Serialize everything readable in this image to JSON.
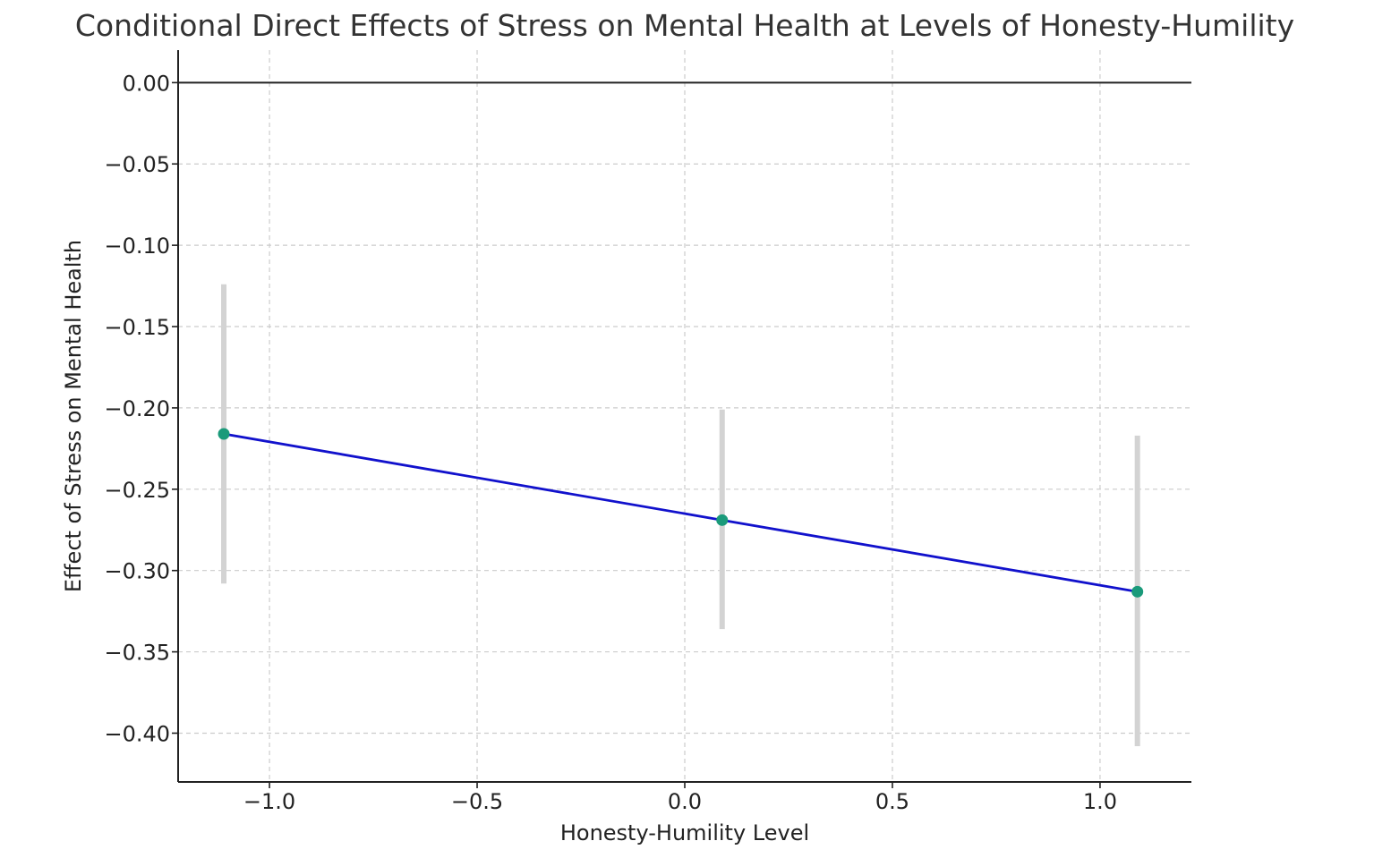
{
  "chart_data": {
    "type": "line",
    "title": "Conditional Direct Effects of Stress on Mental Health at Levels of Honesty-Humility",
    "xlabel": "Honesty-Humility Level",
    "ylabel": "Effect of Stress on Mental Health",
    "xlim": [
      -1.22,
      1.22
    ],
    "ylim": [
      -0.43,
      0.02
    ],
    "xticks": [
      -1.0,
      -0.5,
      0.0,
      0.5,
      1.0
    ],
    "xtick_labels": [
      "−1.0",
      "−0.5",
      "0.0",
      "0.5",
      "1.0"
    ],
    "yticks": [
      0.0,
      -0.05,
      -0.1,
      -0.15,
      -0.2,
      -0.25,
      -0.3,
      -0.35,
      -0.4
    ],
    "ytick_labels": [
      "0.00",
      "−0.05",
      "−0.10",
      "−0.15",
      "−0.20",
      "−0.25",
      "−0.30",
      "−0.35",
      "−0.40"
    ],
    "reference_line_y": 0.0,
    "grid": true,
    "series": [
      {
        "x": [
          -1.11,
          0.09,
          1.09
        ],
        "y": [
          -0.216,
          -0.269,
          -0.313
        ],
        "ci_lower": [
          -0.308,
          -0.336,
          -0.408
        ],
        "ci_upper": [
          -0.124,
          -0.201,
          -0.217
        ]
      }
    ],
    "colors": {
      "line": "#1111cc",
      "marker": "#1a9a7a",
      "error_bar": "#d3d3d3",
      "reference_line": "#222222"
    }
  }
}
